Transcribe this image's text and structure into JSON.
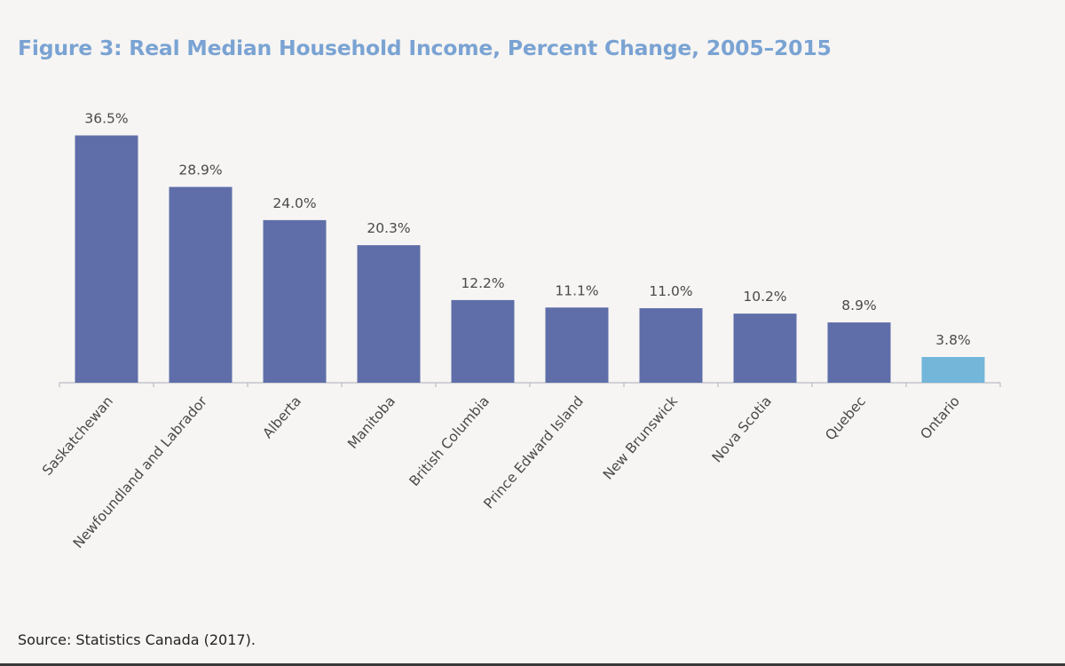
{
  "title": "Figure 3: Real Median Household Income, Percent Change, 2005–2015",
  "source": "Source: Statistics Canada (2017).",
  "colors": {
    "title": "#7aa3d3",
    "bar": "#5f6ea8",
    "highlight_bar": "#73b6d9",
    "axis": "#b9bcc4",
    "label": "#4a4a4a"
  },
  "chart_data": {
    "type": "bar",
    "title": "Figure 3: Real Median Household Income, Percent Change, 2005–2015",
    "xlabel": "",
    "ylabel": "",
    "ylim": [
      0,
      38
    ],
    "grid": false,
    "legend": "none",
    "categories": [
      "Saskatchewan",
      "Newfoundland and Labrador",
      "Alberta",
      "Manitoba",
      "British Columbia",
      "Prince Edward Island",
      "New Brunswick",
      "Nova Scotia",
      "Quebec",
      "Ontario"
    ],
    "values": [
      36.5,
      28.9,
      24.0,
      20.3,
      12.2,
      11.1,
      11.0,
      10.2,
      8.9,
      3.8
    ],
    "value_labels": [
      "36.5%",
      "28.9%",
      "24.0%",
      "20.3%",
      "12.2%",
      "11.1%",
      "11.0%",
      "10.2%",
      "8.9%",
      "3.8%"
    ],
    "highlight_category": "Ontario"
  }
}
